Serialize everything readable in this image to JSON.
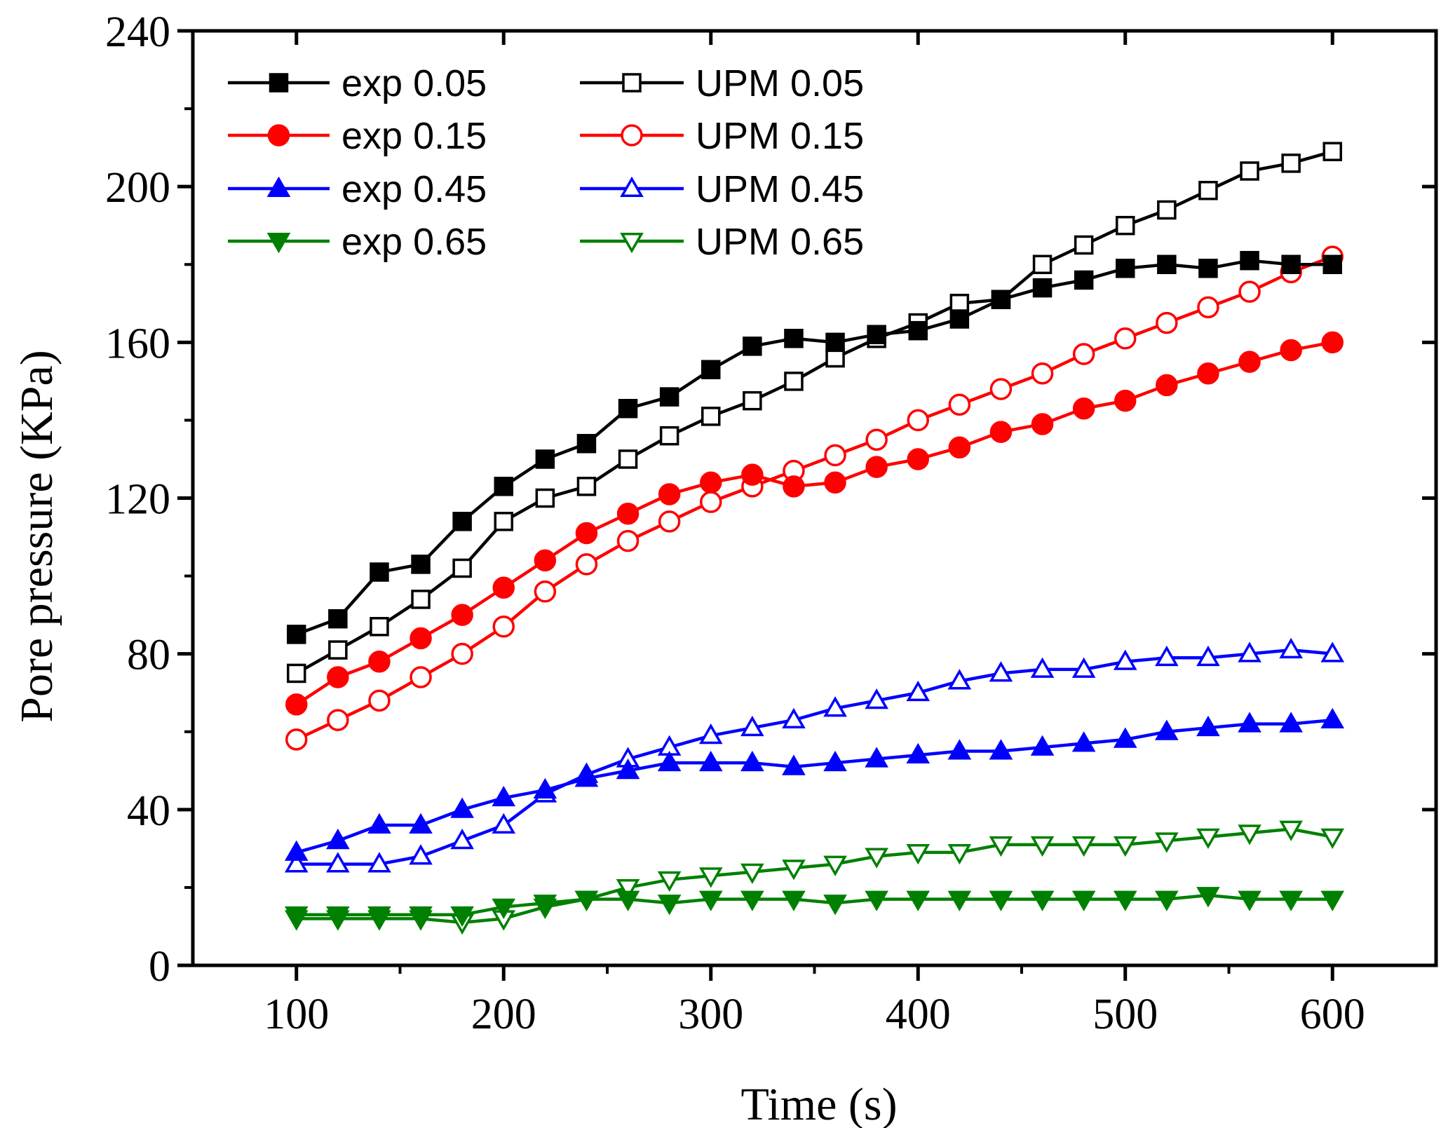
{
  "chart_data": {
    "type": "line",
    "title": "",
    "xlabel": "Time (s)",
    "ylabel": "Pore pressure (KPa)",
    "xlim": [
      50,
      650
    ],
    "ylim": [
      0,
      240
    ],
    "xticks": [
      100,
      200,
      300,
      400,
      500,
      600
    ],
    "xtick_labels": [
      "100",
      "200",
      "300",
      "400",
      "500",
      "600"
    ],
    "yticks": [
      0,
      40,
      80,
      120,
      160,
      200,
      240
    ],
    "ytick_labels": [
      "0",
      "40",
      "80",
      "120",
      "160",
      "200",
      "240"
    ],
    "grid": false,
    "legend_position": "top-left",
    "x": [
      100,
      120,
      140,
      160,
      180,
      200,
      220,
      240,
      260,
      280,
      300,
      320,
      340,
      360,
      380,
      400,
      420,
      440,
      460,
      480,
      500,
      520,
      540,
      560,
      580,
      600
    ],
    "series": [
      {
        "name": "exp 0.05",
        "color": "#000000",
        "marker": "square",
        "filled": true,
        "values": [
          85,
          89,
          101,
          103,
          114,
          123,
          130,
          134,
          143,
          146,
          153,
          159,
          161,
          160,
          162,
          163,
          166,
          171,
          174,
          176,
          179,
          180,
          179,
          181,
          180,
          180
        ]
      },
      {
        "name": "exp 0.15",
        "color": "#ff0000",
        "marker": "circle",
        "filled": true,
        "values": [
          67,
          74,
          78,
          84,
          90,
          97,
          104,
          111,
          116,
          121,
          124,
          126,
          123,
          124,
          128,
          130,
          133,
          137,
          139,
          143,
          145,
          149,
          152,
          155,
          158,
          160
        ]
      },
      {
        "name": "exp 0.45",
        "color": "#0000ff",
        "marker": "triangle-up",
        "filled": true,
        "values": [
          29,
          32,
          36,
          36,
          40,
          43,
          45,
          48,
          50,
          52,
          52,
          52,
          51,
          52,
          53,
          54,
          55,
          55,
          56,
          57,
          58,
          60,
          61,
          62,
          62,
          63
        ]
      },
      {
        "name": "exp 0.65",
        "color": "#008000",
        "marker": "triangle-down",
        "filled": true,
        "values": [
          13,
          13,
          13,
          13,
          13,
          15,
          16,
          17,
          17,
          16,
          17,
          17,
          17,
          16,
          17,
          17,
          17,
          17,
          17,
          17,
          17,
          17,
          18,
          17,
          17,
          17
        ]
      },
      {
        "name": "UPM 0.05",
        "color": "#000000",
        "marker": "square",
        "filled": false,
        "values": [
          75,
          81,
          87,
          94,
          102,
          114,
          120,
          123,
          130,
          136,
          141,
          145,
          150,
          156,
          161,
          165,
          170,
          171,
          180,
          185,
          190,
          194,
          199,
          204,
          206,
          209
        ]
      },
      {
        "name": "UPM 0.15",
        "color": "#ff0000",
        "marker": "circle",
        "filled": false,
        "values": [
          58,
          63,
          68,
          74,
          80,
          87,
          96,
          103,
          109,
          114,
          119,
          123,
          127,
          131,
          135,
          140,
          144,
          148,
          152,
          157,
          161,
          165,
          169,
          173,
          178,
          182
        ]
      },
      {
        "name": "UPM 0.45",
        "color": "#0000ff",
        "marker": "triangle-up",
        "filled": false,
        "values": [
          26,
          26,
          26,
          28,
          32,
          36,
          44,
          49,
          53,
          56,
          59,
          61,
          63,
          66,
          68,
          70,
          73,
          75,
          76,
          76,
          78,
          79,
          79,
          80,
          81,
          80
        ]
      },
      {
        "name": "UPM 0.65",
        "color": "#008000",
        "marker": "triangle-down",
        "filled": false,
        "values": [
          12,
          12,
          12,
          12,
          11,
          12,
          15,
          17,
          20,
          22,
          23,
          24,
          25,
          26,
          28,
          29,
          29,
          31,
          31,
          31,
          31,
          32,
          33,
          34,
          35,
          33
        ]
      }
    ]
  }
}
